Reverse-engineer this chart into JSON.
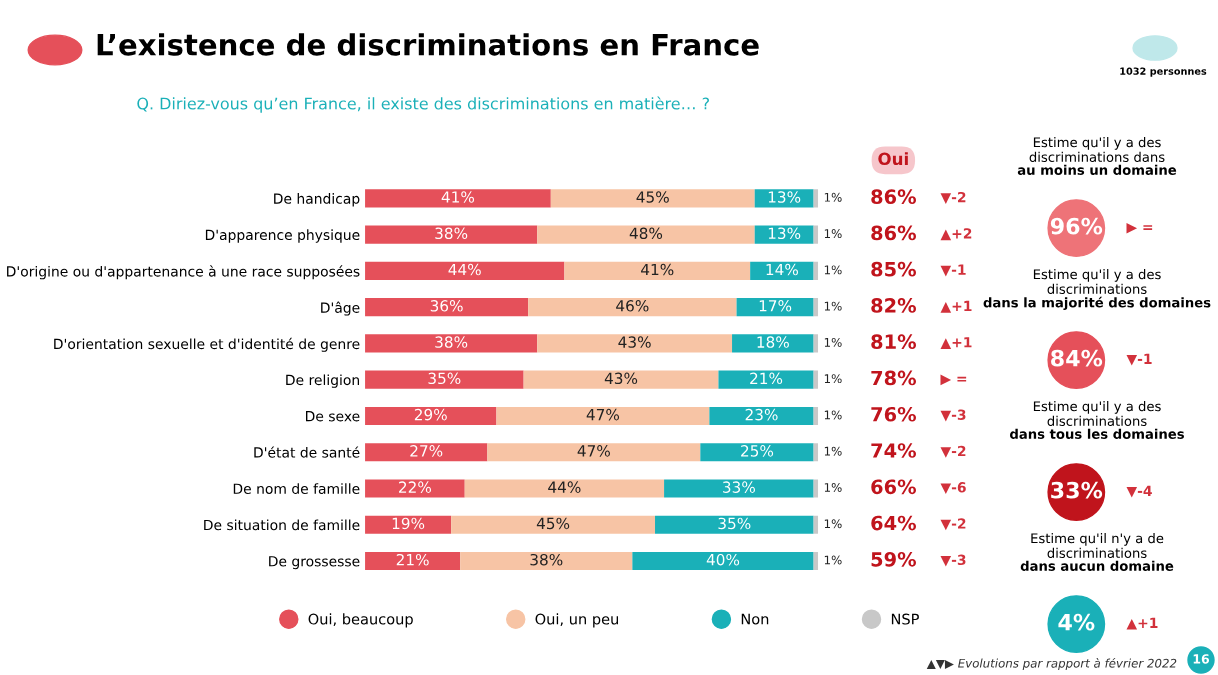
{
  "chart_data": [
    {
      "type": "bar",
      "orientation": "horizontal",
      "stacked": true,
      "title": "L’existence de discriminations en France",
      "subtitle": "Q. Diriez-vous qu’en France, il existe des discriminations en matière… ?",
      "categories": [
        "De handicap",
        "D'apparence physique",
        "D'origine ou d'appartenance à une race supposées",
        "D'âge",
        "D'orientation sexuelle et d'identité de genre",
        "De religion",
        "De sexe",
        "D'état de santé",
        "De nom de famille",
        "De situation de famille",
        "De grossesse"
      ],
      "tick_labels": "y",
      "grid": false,
      "legend": "bottom",
      "marker": "circle",
      "series": [
        {
          "name": "Oui, beaucoup",
          "color": "#e5505a",
          "values": [
            41,
            38,
            44,
            36,
            38,
            35,
            29,
            27,
            22,
            19,
            21
          ],
          "value_labels": [
            "41%",
            "38%",
            "44%",
            "36%",
            "38%",
            "35%",
            "29%",
            "27%",
            "22%",
            "19%",
            "21%"
          ]
        },
        {
          "name": "Oui, un peu",
          "color": "#f7c4a5",
          "values": [
            45,
            48,
            41,
            46,
            43,
            43,
            47,
            47,
            44,
            45,
            38
          ],
          "value_labels": [
            "45%",
            "48%",
            "41%",
            "46%",
            "43%",
            "43%",
            "47%",
            "47%",
            "44%",
            "45%",
            "38%"
          ]
        },
        {
          "name": "Non",
          "color": "#1ab0b8",
          "values": [
            13,
            13,
            14,
            17,
            18,
            21,
            23,
            25,
            33,
            35,
            40
          ],
          "value_labels": [
            "13%",
            "13%",
            "14%",
            "17%",
            "18%",
            "21%",
            "23%",
            "25%",
            "33%",
            "35%",
            "40%"
          ]
        },
        {
          "name": "NSP",
          "color": "#c8c8c8",
          "values": [
            1,
            1,
            1,
            1,
            1,
            1,
            1,
            1,
            1,
            1,
            1
          ],
          "value_labels": [
            "1%",
            "1%",
            "1%",
            "1%",
            "1%",
            "1%",
            "1%",
            "1%",
            "1%",
            "1%",
            "1%"
          ]
        }
      ],
      "annotations": [
        "Oui",
        "1032 personnes",
        "▲▼▶ Evolutions par rapport à février 2022",
        "16",
        "86%",
        "86%",
        "85%",
        "82%",
        "81%",
        "78%",
        "76%",
        "74%",
        "66%",
        "64%",
        "59%",
        "▼-2",
        "▲+2",
        "▼-1",
        "▲+1",
        "▲+1",
        "▶ =",
        "▼-3",
        "▼-2",
        "▼-6",
        "▼-2",
        "▼-3"
      ]
    },
    {
      "type": "other",
      "colors": [
        "#ee7378",
        "#e5505a",
        "#c0141c",
        "#1ab0b8"
      ],
      "annotations": [
        "Estime qu'il y a des\ndiscriminations dans\nau moins un domaine",
        "96%",
        "▶ =",
        "Estime qu'il y a des\ndiscriminations\ndans la majorité des domaines",
        "84%",
        "▼-1",
        "Estime qu'il y a des\ndiscriminations\ndans tous les domaines",
        "33%",
        "▼-4",
        "Estime qu'il n'y a de\ndiscriminations\ndans aucun domaine",
        "4%",
        "▲+1"
      ]
    }
  ]
}
